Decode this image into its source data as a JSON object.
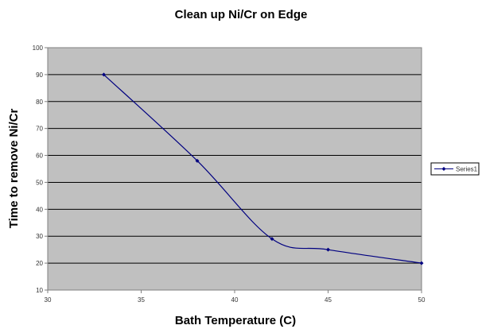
{
  "chart_data": {
    "type": "line",
    "title": "Clean up Ni/Cr on Edge",
    "xlabel": "Bath Temperature (C)",
    "ylabel": "Time to remove Ni/Cr",
    "xlim": [
      30,
      50
    ],
    "ylim": [
      10,
      100
    ],
    "x_ticks": [
      30,
      35,
      40,
      45,
      50
    ],
    "y_ticks": [
      10,
      20,
      30,
      40,
      50,
      60,
      70,
      80,
      90,
      100
    ],
    "x_tick_labels": [
      "30",
      "35",
      "40",
      "45",
      "50"
    ],
    "y_tick_labels": [
      "10",
      "20",
      "30",
      "40",
      "50",
      "60",
      "70",
      "80",
      "90",
      "100"
    ],
    "grid": "horizontal",
    "plot_background": "#c0c0c0",
    "legend_position": "right",
    "series": [
      {
        "name": "Series1",
        "color": "#000080",
        "marker": "diamond",
        "smooth": true,
        "x": [
          33,
          38,
          42,
          45,
          50
        ],
        "y": [
          90,
          58,
          29,
          25,
          20
        ]
      }
    ]
  }
}
